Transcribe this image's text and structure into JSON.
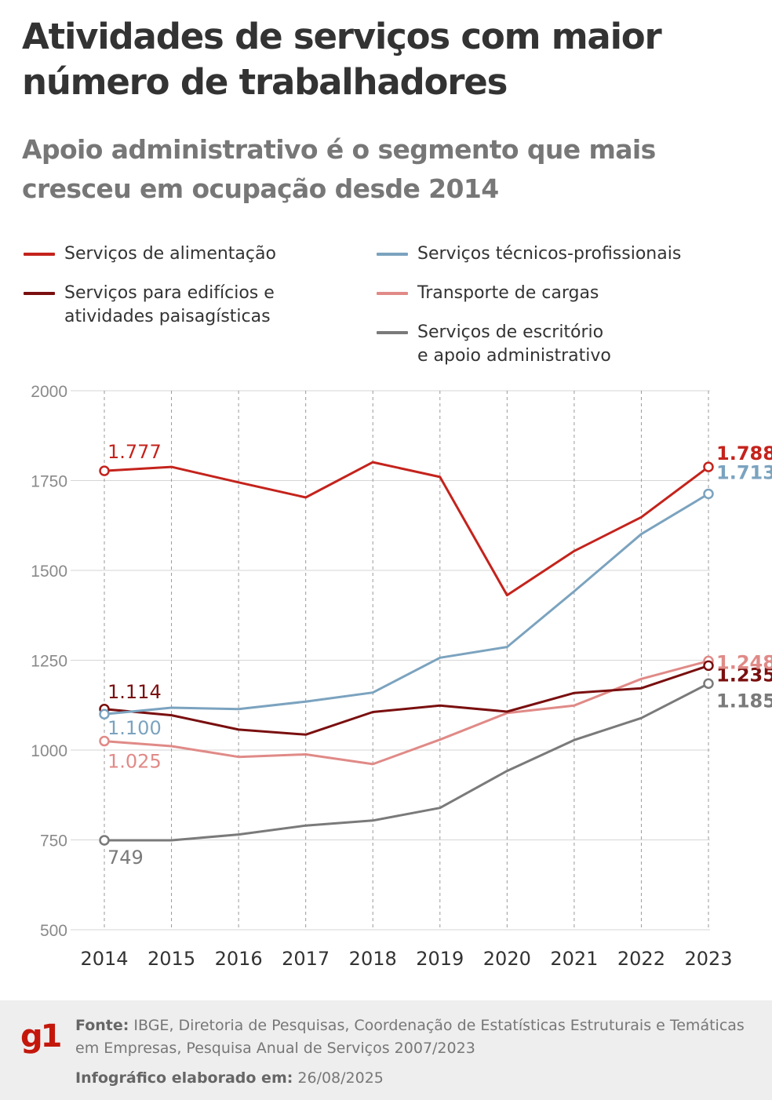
{
  "title": "Atividades de serviços com maior número de trabalhadores",
  "subtitle": "Apoio administrativo é o segmento que mais cresceu em ocupação desde 2014",
  "footer": {
    "source_label": "Fonte:",
    "source_text": "IBGE, Diretoria de Pesquisas, Coordenação de Estatísticas Estruturais e Temáticas em Empresas, Pesquisa Anual de Serviços 2007/2023",
    "date_label": "Infográfico elaborado em:",
    "date_value": "26/08/2025",
    "logo": "g1"
  },
  "chart_data": {
    "type": "line",
    "x": [
      "2014",
      "2015",
      "2016",
      "2017",
      "2018",
      "2019",
      "2020",
      "2021",
      "2022",
      "2023"
    ],
    "ylim": [
      500,
      2000
    ],
    "yticks": [
      500,
      750,
      1000,
      1250,
      1500,
      1750,
      2000
    ],
    "grid": true,
    "legend_position": "top",
    "series": [
      {
        "name": "Serviços de alimentação",
        "color": "#c4231c",
        "values": [
          1777,
          1788,
          1745,
          1703,
          1801,
          1760,
          1431,
          1554,
          1648,
          1788
        ],
        "start_label": "1.777",
        "end_label": "1.788"
      },
      {
        "name": "Serviços para edifícios e\natividades paisagísticas",
        "color": "#7a0f0f",
        "values": [
          1114,
          1097,
          1057,
          1043,
          1106,
          1124,
          1107,
          1159,
          1172,
          1235
        ],
        "start_label": "1.114",
        "end_label": "1.235"
      },
      {
        "name": "Serviços técnicos-profissionais",
        "color": "#7ba3bf",
        "values": [
          1100,
          1118,
          1114,
          1135,
          1160,
          1257,
          1287,
          1442,
          1601,
          1713
        ],
        "start_label": "1.100",
        "end_label": "1.713"
      },
      {
        "name": "Transporte de cargas",
        "color": "#e08a87",
        "values": [
          1025,
          1011,
          981,
          988,
          961,
          1029,
          1103,
          1124,
          1198,
          1248
        ],
        "start_label": "1.025",
        "end_label": "1.248"
      },
      {
        "name": "Serviços de escritório\ne apoio administrativo",
        "color": "#7a7a7a",
        "values": [
          749,
          749,
          765,
          790,
          804,
          839,
          942,
          1028,
          1089,
          1185
        ],
        "start_label": "749",
        "end_label": "1.185"
      }
    ]
  }
}
